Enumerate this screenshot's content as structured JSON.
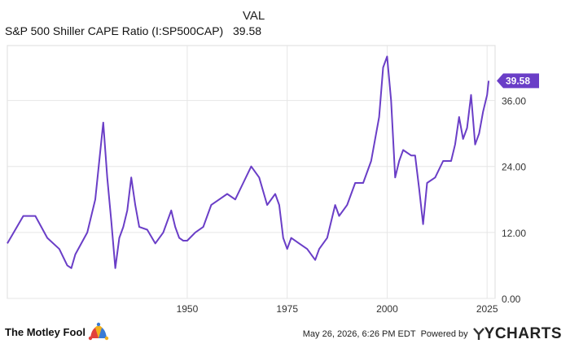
{
  "header": {
    "value_column_label": "VAL",
    "series_label": "S&P 500 Shiller CAPE Ratio (I:SP500CAP)",
    "series_value": "39.58"
  },
  "chart_data": {
    "type": "line",
    "series": [
      {
        "name": "S&P 500 Shiller CAPE Ratio (I:SP500CAP)",
        "color": "#6a3ec7",
        "x": [
          1905,
          1909,
          1912,
          1915,
          1918,
          1920,
          1921,
          1922,
          1925,
          1927,
          1928,
          1929,
          1930,
          1931,
          1932,
          1933,
          1934,
          1935,
          1936,
          1937,
          1938,
          1940,
          1942,
          1944,
          1946,
          1947,
          1948,
          1949,
          1950,
          1952,
          1954,
          1956,
          1958,
          1960,
          1962,
          1964,
          1966,
          1968,
          1970,
          1972,
          1973,
          1974,
          1975,
          1976,
          1978,
          1980,
          1982,
          1983,
          1985,
          1987,
          1988,
          1990,
          1992,
          1994,
          1996,
          1998,
          1999,
          2000,
          2001,
          2002,
          2003,
          2004,
          2006,
          2007,
          2008,
          2009,
          2010,
          2012,
          2014,
          2016,
          2017,
          2018,
          2019,
          2020,
          2021,
          2022,
          2023,
          2024,
          2025,
          2025.4
        ],
        "y": [
          10.0,
          15.0,
          15.0,
          11.0,
          9.0,
          6.0,
          5.5,
          8.0,
          12.0,
          18.0,
          25.0,
          32.0,
          22.0,
          14.0,
          5.5,
          11.0,
          13.0,
          16.0,
          22.0,
          17.0,
          13.0,
          12.5,
          10.0,
          12.0,
          16.0,
          13.0,
          11.0,
          10.5,
          10.5,
          12.0,
          13.0,
          17.0,
          18.0,
          19.0,
          18.0,
          21.0,
          24.0,
          22.0,
          17.0,
          19.0,
          17.0,
          11.0,
          9.0,
          11.0,
          10.0,
          9.0,
          7.0,
          9.0,
          11.0,
          17.0,
          15.0,
          17.0,
          21.0,
          21.0,
          25.0,
          33.0,
          42.0,
          44.0,
          36.0,
          22.0,
          25.0,
          27.0,
          26.0,
          26.0,
          20.0,
          13.5,
          21.0,
          22.0,
          25.0,
          25.0,
          28.0,
          33.0,
          29.0,
          31.0,
          37.0,
          28.0,
          30.0,
          34.0,
          37.0,
          39.58
        ]
      }
    ],
    "xlim": [
      1905,
      2027
    ],
    "ylim": [
      0,
      46
    ],
    "x_ticks": [
      1950,
      1975,
      2000,
      2025
    ],
    "y_ticks": [
      0,
      12,
      24,
      36
    ],
    "y_tick_labels": [
      "0.00",
      "12.00",
      "24.00",
      "36.00"
    ],
    "current_value_label": "39.58",
    "grid": true
  },
  "footer": {
    "brand": "The Motley Fool",
    "timestamp": "May 26, 2026, 6:26 PM EDT",
    "powered_by": "Powered by",
    "provider": "YCHARTS",
    "brand_color": "#6a3ec7",
    "icons": [
      "jester-cap-icon",
      "ycharts-logo-icon"
    ]
  }
}
